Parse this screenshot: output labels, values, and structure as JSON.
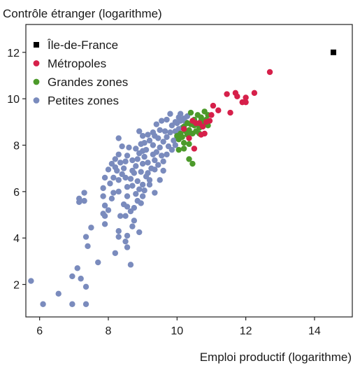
{
  "chart_data": {
    "type": "scatter",
    "ylabel": "Contrôle étranger (logarithme)",
    "xlabel": "Emploi productif (logarithme)",
    "xlim": [
      5.6,
      15.1
    ],
    "ylim": [
      0.6,
      13.2
    ],
    "x_ticks": [
      6,
      8,
      10,
      12,
      14
    ],
    "y_ticks": [
      2,
      4,
      6,
      8,
      10,
      12
    ],
    "legend_position": "top-left",
    "grid": false,
    "series": [
      {
        "name": "Île-de-France",
        "marker": "square",
        "color": "#000000",
        "points": [
          [
            14.55,
            12.0
          ]
        ]
      },
      {
        "name": "Métropoles",
        "marker": "circle",
        "color": "#d6204a",
        "points": [
          [
            12.7,
            11.15
          ],
          [
            12.25,
            10.25
          ],
          [
            11.7,
            10.25
          ],
          [
            11.75,
            10.1
          ],
          [
            11.45,
            10.2
          ],
          [
            12.0,
            10.05
          ],
          [
            11.9,
            9.85
          ],
          [
            12.0,
            9.85
          ],
          [
            11.55,
            9.4
          ],
          [
            11.2,
            9.5
          ],
          [
            11.05,
            9.7
          ],
          [
            11.0,
            9.3
          ],
          [
            10.95,
            9.05
          ],
          [
            10.85,
            9.0
          ],
          [
            10.75,
            8.8
          ],
          [
            10.65,
            8.95
          ],
          [
            10.8,
            8.5
          ],
          [
            10.7,
            8.45
          ],
          [
            10.55,
            8.95
          ],
          [
            10.45,
            9.05
          ],
          [
            10.5,
            7.85
          ],
          [
            10.2,
            8.7
          ],
          [
            10.35,
            8.3
          ]
        ]
      },
      {
        "name": "Grandes zones",
        "marker": "circle",
        "color": "#4c9a2a",
        "points": [
          [
            10.4,
            9.4
          ],
          [
            10.5,
            9.1
          ],
          [
            10.6,
            9.3
          ],
          [
            10.7,
            9.2
          ],
          [
            10.8,
            9.45
          ],
          [
            10.9,
            9.3
          ],
          [
            10.85,
            9.1
          ],
          [
            10.7,
            9.05
          ],
          [
            10.6,
            8.9
          ],
          [
            10.5,
            8.85
          ],
          [
            10.4,
            8.9
          ],
          [
            10.3,
            8.95
          ],
          [
            10.2,
            8.8
          ],
          [
            10.1,
            8.5
          ],
          [
            10.25,
            8.6
          ],
          [
            10.35,
            8.65
          ],
          [
            10.45,
            8.5
          ],
          [
            10.55,
            8.6
          ],
          [
            10.65,
            8.75
          ],
          [
            10.3,
            8.45
          ],
          [
            10.15,
            8.35
          ],
          [
            10.05,
            8.25
          ],
          [
            10.2,
            8.1
          ],
          [
            10.35,
            8.05
          ],
          [
            10.0,
            8.4
          ],
          [
            10.05,
            7.8
          ],
          [
            10.2,
            7.85
          ],
          [
            10.35,
            7.4
          ],
          [
            10.45,
            7.2
          ],
          [
            10.65,
            8.5
          ],
          [
            10.75,
            8.9
          ],
          [
            10.9,
            8.85
          ]
        ]
      },
      {
        "name": "Petites zones",
        "marker": "circle",
        "color": "#7a8bbd",
        "points": [
          [
            5.75,
            2.15
          ],
          [
            6.1,
            1.15
          ],
          [
            6.55,
            1.6
          ],
          [
            6.95,
            1.15
          ],
          [
            7.35,
            1.15
          ],
          [
            6.95,
            2.35
          ],
          [
            7.1,
            2.7
          ],
          [
            7.2,
            2.25
          ],
          [
            7.35,
            1.9
          ],
          [
            7.35,
            4.05
          ],
          [
            7.4,
            3.65
          ],
          [
            7.5,
            4.45
          ],
          [
            7.7,
            2.95
          ],
          [
            7.9,
            4.6
          ],
          [
            7.9,
            4.95
          ],
          [
            7.9,
            5.4
          ],
          [
            7.15,
            5.7
          ],
          [
            7.3,
            5.6
          ],
          [
            7.3,
            5.95
          ],
          [
            7.15,
            5.55
          ],
          [
            7.85,
            5.05
          ],
          [
            7.85,
            5.8
          ],
          [
            8.0,
            5.2
          ],
          [
            8.05,
            6.35
          ],
          [
            8.1,
            5.7
          ],
          [
            8.3,
            4.3
          ],
          [
            8.3,
            4.05
          ],
          [
            8.35,
            4.95
          ],
          [
            8.5,
            3.85
          ],
          [
            8.55,
            3.6
          ],
          [
            8.65,
            2.85
          ],
          [
            8.7,
            4.5
          ],
          [
            8.75,
            4.75
          ],
          [
            8.55,
            5.35
          ],
          [
            8.55,
            5.8
          ],
          [
            8.3,
            6.0
          ],
          [
            8.3,
            6.5
          ],
          [
            8.4,
            6.75
          ],
          [
            8.45,
            7.0
          ],
          [
            8.55,
            6.2
          ],
          [
            8.65,
            6.55
          ],
          [
            8.75,
            6.8
          ],
          [
            8.2,
            7.4
          ],
          [
            8.3,
            7.6
          ],
          [
            8.5,
            7.3
          ],
          [
            8.55,
            7.55
          ],
          [
            8.7,
            7.35
          ],
          [
            8.8,
            7.1
          ],
          [
            8.7,
            6.25
          ],
          [
            8.8,
            5.9
          ],
          [
            8.85,
            6.45
          ],
          [
            8.9,
            6.1
          ],
          [
            8.95,
            5.5
          ],
          [
            8.95,
            6.85
          ],
          [
            9.0,
            7.2
          ],
          [
            9.05,
            7.5
          ],
          [
            9.1,
            7.8
          ],
          [
            9.15,
            7.25
          ],
          [
            9.15,
            6.8
          ],
          [
            9.2,
            6.5
          ],
          [
            9.25,
            7.0
          ],
          [
            9.3,
            7.6
          ],
          [
            9.3,
            8.0
          ],
          [
            9.35,
            7.35
          ],
          [
            9.4,
            7.7
          ],
          [
            9.45,
            8.3
          ],
          [
            9.5,
            7.9
          ],
          [
            9.55,
            7.55
          ],
          [
            9.6,
            8.15
          ],
          [
            9.65,
            8.6
          ],
          [
            9.7,
            8.35
          ],
          [
            9.75,
            7.95
          ],
          [
            9.8,
            8.55
          ],
          [
            9.85,
            8.85
          ],
          [
            9.9,
            8.2
          ],
          [
            9.95,
            8.6
          ],
          [
            10.0,
            8.95
          ],
          [
            10.05,
            9.2
          ],
          [
            10.1,
            9.05
          ],
          [
            10.1,
            9.35
          ],
          [
            10.15,
            8.75
          ],
          [
            10.2,
            9.15
          ],
          [
            10.25,
            9.0
          ],
          [
            10.3,
            9.25
          ],
          [
            9.2,
            8.2
          ],
          [
            9.3,
            8.55
          ],
          [
            9.4,
            8.9
          ],
          [
            9.55,
            9.05
          ],
          [
            9.05,
            8.1
          ],
          [
            9.0,
            7.75
          ],
          [
            8.95,
            8.05
          ],
          [
            8.9,
            7.65
          ],
          [
            8.85,
            7.4
          ],
          [
            8.8,
            7.85
          ],
          [
            8.6,
            7.9
          ],
          [
            8.4,
            7.95
          ],
          [
            8.3,
            8.3
          ],
          [
            8.25,
            6.9
          ],
          [
            8.15,
            6.6
          ],
          [
            8.1,
            7.2
          ],
          [
            8.0,
            6.95
          ],
          [
            7.9,
            6.6
          ],
          [
            7.85,
            6.15
          ],
          [
            8.15,
            5.95
          ],
          [
            8.45,
            5.45
          ],
          [
            8.65,
            5.15
          ],
          [
            8.85,
            5.6
          ],
          [
            9.05,
            6.05
          ],
          [
            9.1,
            6.65
          ],
          [
            9.35,
            6.95
          ],
          [
            9.45,
            7.15
          ],
          [
            9.6,
            7.3
          ],
          [
            9.7,
            7.6
          ],
          [
            9.85,
            7.8
          ],
          [
            9.95,
            8.0
          ],
          [
            10.0,
            8.3
          ],
          [
            9.7,
            9.1
          ],
          [
            9.5,
            8.65
          ],
          [
            9.35,
            8.4
          ],
          [
            9.15,
            8.45
          ],
          [
            9.0,
            8.4
          ],
          [
            8.9,
            8.6
          ],
          [
            9.6,
            6.9
          ],
          [
            9.5,
            6.5
          ],
          [
            9.2,
            6.3
          ],
          [
            9.0,
            6.3
          ],
          [
            8.7,
            6.9
          ],
          [
            8.5,
            6.6
          ],
          [
            8.35,
            7.25
          ],
          [
            8.2,
            7.05
          ],
          [
            9.8,
            9.35
          ],
          [
            9.95,
            9.0
          ],
          [
            10.05,
            8.7
          ],
          [
            9.35,
            5.95
          ],
          [
            9.0,
            5.8
          ],
          [
            8.75,
            5.3
          ],
          [
            8.5,
            4.95
          ],
          [
            8.9,
            4.25
          ],
          [
            8.55,
            4.1
          ],
          [
            8.2,
            3.35
          ]
        ]
      }
    ]
  }
}
